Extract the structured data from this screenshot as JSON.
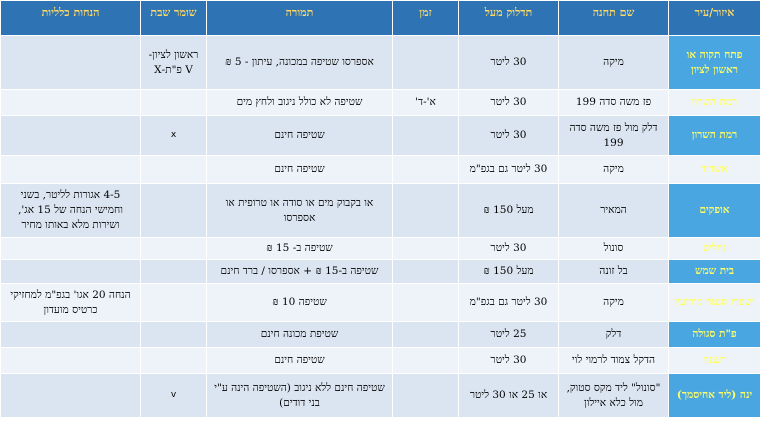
{
  "headers": [
    "איזור/עיר",
    "שם תחנה",
    "תדלוק מעל",
    "זמן",
    "תמורה",
    "שומר שבת",
    "הנחות כלליות"
  ],
  "rows": [
    {
      "region": "פתח תקוה או ראשון לציון",
      "station": "מיקה",
      "fuel": "30 ליטר",
      "time": "",
      "reward": "אספרסו שטיפה במכונה, עיתון - 5 ₪",
      "shabbat": "ראשון לציון-V פ\"ת-X",
      "discount": ""
    },
    {
      "region": "רמת השרון",
      "station": "פז משה סדה 199",
      "fuel": "30 ליטר",
      "time": "א'-ד'",
      "reward": "שטיפה לא כולל ניגוב ולחץ מים",
      "shabbat": "",
      "discount": ""
    },
    {
      "region": "רמת השרון",
      "station": "דלק מול פז משה סדה 199",
      "fuel": "30 ליטר",
      "time": "",
      "reward": "שטיפה חינם",
      "shabbat": "x",
      "discount": ""
    },
    {
      "region": "אשדוד",
      "station": "מיקה",
      "fuel": "30 ליטר גם בגפ\"מ",
      "time": "",
      "reward": "שטיפה חינם",
      "shabbat": "",
      "discount": ""
    },
    {
      "region": "אופקים",
      "station": "המאיר",
      "fuel": "מעל 150 ₪",
      "time": "",
      "reward": "או בקבוק מים או סודה או טרופית או אספרסו",
      "shabbat": "",
      "discount": "4-5 אגורות לליטר, בשני וחמישי הנחה של 15 אג', ושירות מלא באותו מחיר"
    },
    {
      "region": "נחלים",
      "station": "סונול",
      "fuel": "30 ליטר",
      "time": "",
      "reward": "שטיפה ב- 15 ₪",
      "shabbat": "",
      "discount": ""
    },
    {
      "region": "בית שמש",
      "station": "בל זונה",
      "fuel": "מעל 150 ₪",
      "time": "",
      "reward": "שטיפה ב-15 ₪ + אספרסו / ברד חינם",
      "shabbat": "",
      "discount": ""
    },
    {
      "region": "ישפרו סנטר מודיעין",
      "station": "מיקה",
      "fuel": "30 ליטר גם בגפ\"מ",
      "time": "",
      "reward": "שטיפה 10 ₪",
      "shabbat": "",
      "discount": "הנחה 20 אגו' בגפ\"מ למחזיקי כרטיס מועדון"
    },
    {
      "region": "פ\"ת סגולה",
      "station": "דלק",
      "fuel": "25 ליטר",
      "time": "",
      "reward": "שטיפת מכונה חינם",
      "shabbat": "",
      "discount": ""
    },
    {
      "region": "רעננה",
      "station": "הדקל צמוד לרמוי לוי",
      "fuel": "30 ליטר",
      "time": "",
      "reward": "שטיפה חינם",
      "shabbat": "",
      "discount": ""
    },
    {
      "region": "ינה (ליד אחיסמך)",
      "station": "\"סונול\" ליד מקס סטוק, מול כלא איילון",
      "fuel": "או 25 או 30 ליטר",
      "time": "",
      "reward": "שטיפה חינם ללא ניגוב (השטיפה הינה ע\"י בני דודים)",
      "shabbat": "v",
      "discount": ""
    }
  ]
}
